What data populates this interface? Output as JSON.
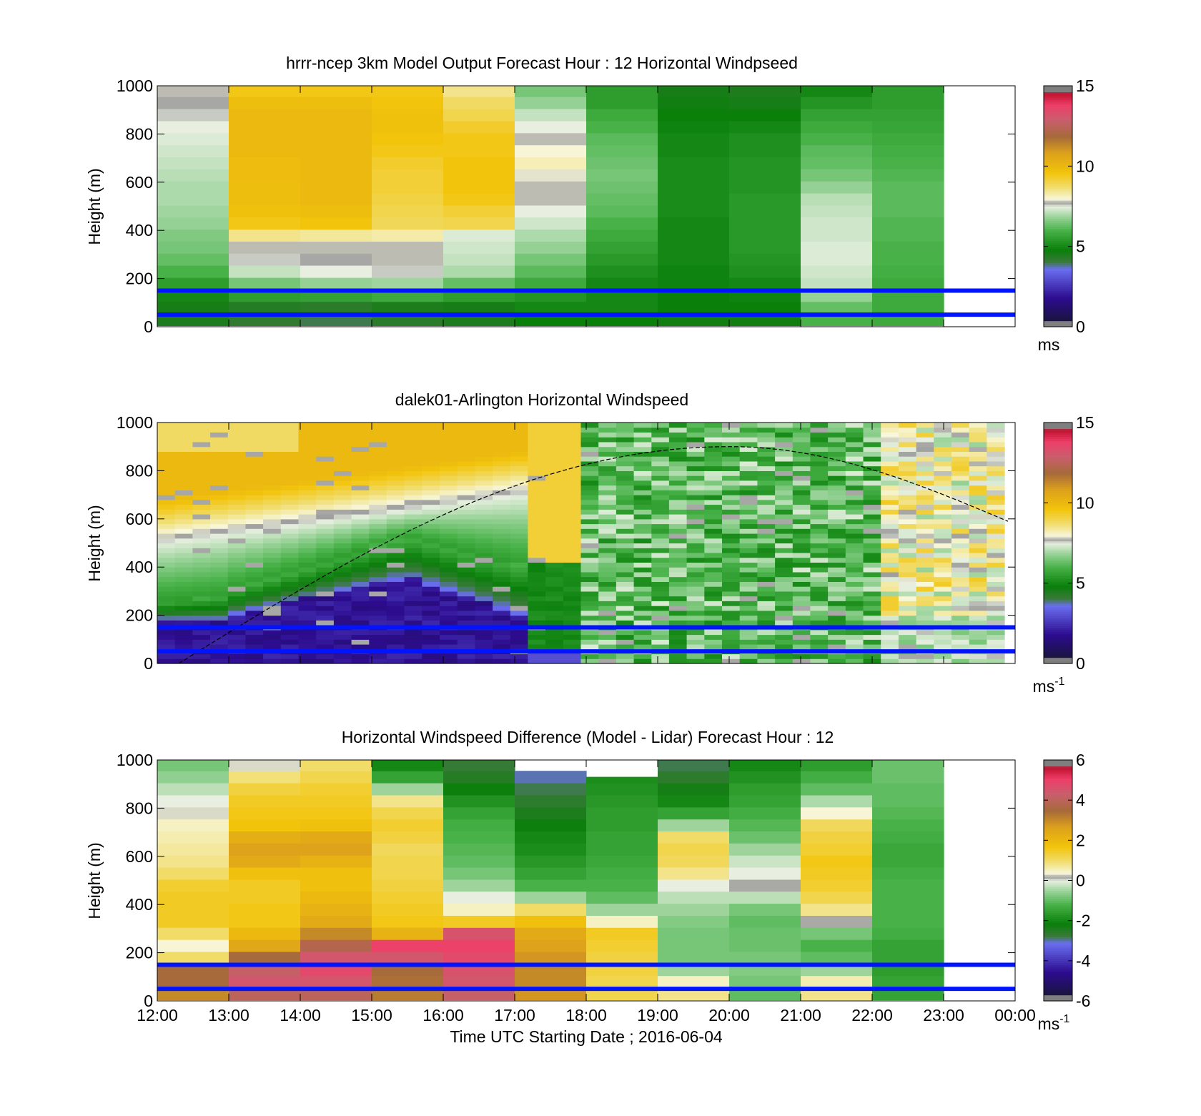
{
  "figure": {
    "xlabel": "Time UTC  Starting Date ; 2016-06-04",
    "x_ticks": [
      "12:00",
      "13:00",
      "14:00",
      "15:00",
      "16:00",
      "17:00",
      "18:00",
      "19:00",
      "20:00",
      "21:00",
      "22:00",
      "23:00",
      "00:00"
    ]
  },
  "chart_data": [
    {
      "type": "heatmap",
      "title": "hrrr-ncep 3km Model Output   Forecast Hour : 12 Horizontal Windpseed",
      "ylabel": "Height (m)",
      "y_ticks": [
        0,
        200,
        400,
        600,
        800,
        1000
      ],
      "ylim": [
        0,
        1000
      ],
      "xlim_hours": [
        12,
        24
      ],
      "colorbar": {
        "min": 0,
        "max": 15,
        "ticks": [
          0,
          5,
          10,
          15
        ],
        "unit": "ms",
        "unit_sup": ""
      },
      "x": [
        12,
        13,
        14,
        15,
        16,
        17,
        18,
        19,
        20,
        21,
        22
      ],
      "heights": [
        30,
        80,
        130,
        180,
        230,
        280,
        330,
        380,
        430,
        480,
        530,
        580,
        630,
        680,
        730,
        780,
        830,
        880,
        930,
        980
      ],
      "z": [
        [
          4.5,
          4.6,
          5.0,
          5.5,
          6.0,
          6.3,
          6.5,
          6.6,
          6.8,
          6.9,
          7.0,
          7.0,
          7.1,
          7.2,
          7.3,
          7.4,
          7.5,
          7.6,
          7.7,
          7.8
        ],
        [
          4.2,
          4.4,
          5.5,
          6.5,
          7.2,
          7.6,
          7.8,
          8.5,
          9.5,
          9.7,
          9.8,
          9.8,
          9.9,
          9.9,
          10.0,
          10.0,
          10.0,
          10.0,
          9.8,
          9.5
        ],
        [
          4.0,
          4.3,
          5.6,
          6.8,
          7.5,
          7.7,
          7.8,
          8.4,
          9.6,
          9.8,
          10.0,
          10.0,
          10.0,
          10.0,
          10.0,
          10.0,
          10.0,
          10.0,
          9.8,
          9.5
        ],
        [
          4.3,
          4.5,
          5.8,
          6.9,
          7.6,
          7.8,
          7.8,
          8.3,
          8.9,
          9.0,
          9.1,
          9.2,
          9.2,
          9.3,
          9.5,
          9.6,
          9.7,
          9.7,
          9.6,
          9.5
        ],
        [
          4.5,
          4.6,
          5.5,
          6.3,
          7.0,
          7.2,
          7.3,
          7.4,
          9.0,
          9.2,
          9.5,
          9.6,
          9.6,
          9.6,
          9.5,
          9.5,
          9.3,
          9.0,
          8.8,
          8.5
        ],
        [
          4.8,
          5.0,
          5.3,
          5.8,
          6.2,
          6.5,
          6.8,
          7.0,
          7.3,
          7.5,
          7.8,
          7.8,
          7.9,
          8.2,
          8.0,
          7.8,
          7.5,
          7.2,
          6.8,
          6.5
        ],
        [
          4.8,
          5.0,
          5.0,
          5.0,
          5.2,
          5.4,
          5.6,
          5.8,
          6.0,
          6.2,
          6.3,
          6.4,
          6.5,
          6.4,
          6.3,
          6.2,
          6.0,
          5.8,
          5.5,
          5.5
        ],
        [
          4.7,
          4.8,
          4.8,
          4.9,
          4.9,
          5.0,
          5.0,
          5.0,
          5.0,
          5.1,
          5.1,
          5.1,
          5.1,
          5.1,
          5.0,
          5.0,
          4.9,
          4.8,
          4.7,
          4.6
        ],
        [
          4.7,
          4.8,
          4.9,
          5.0,
          5.2,
          5.3,
          5.4,
          5.4,
          5.4,
          5.4,
          5.4,
          5.3,
          5.3,
          5.3,
          5.2,
          5.2,
          5.0,
          4.8,
          4.6,
          4.5
        ],
        [
          6.0,
          6.3,
          6.8,
          7.2,
          7.3,
          7.4,
          7.4,
          7.3,
          7.3,
          7.2,
          7.1,
          6.8,
          6.5,
          6.3,
          6.2,
          6.0,
          5.8,
          5.6,
          5.3,
          5.0
        ],
        [
          5.8,
          5.8,
          5.8,
          5.8,
          5.9,
          6.0,
          6.0,
          6.1,
          6.1,
          6.2,
          6.2,
          6.2,
          6.1,
          6.0,
          5.9,
          5.8,
          5.7,
          5.6,
          5.5,
          5.5
        ]
      ],
      "lines_m": [
        150,
        50
      ]
    },
    {
      "type": "heatmap",
      "title": "dalek01-Arlington  Horizontal Windspeed",
      "ylabel": "Height (m)",
      "y_ticks": [
        0,
        200,
        400,
        600,
        800,
        1000
      ],
      "ylim": [
        0,
        1000
      ],
      "xlim_hours": [
        12,
        24
      ],
      "colorbar": {
        "min": 0,
        "max": 15,
        "ticks": [
          0,
          5,
          10,
          15
        ],
        "unit": "ms",
        "unit_sup": "-1"
      },
      "x_start_hours": 12,
      "x_end_hours": 23.85,
      "columns": 48,
      "rows": 50,
      "profile_description": "Low-level jet below ~300 m (1-3 ms-1) until 17:00, 8-10 ms-1 aloft; 5-7 ms-1 mixed layer after 18:00; 7-9 ms-1 after 22:00",
      "boundary_layer_curve": {
        "start_hours": 12.3,
        "start_m": 0,
        "peak_hours": 20.0,
        "peak_m": 900,
        "end_hours": 23.9,
        "end_m": 590
      },
      "lines_m": [
        150,
        50
      ]
    },
    {
      "type": "heatmap",
      "title": "Horizontal Windspeed Difference (Model - Lidar) Forecast Hour : 12",
      "ylabel": "Height (m)",
      "y_ticks": [
        0,
        200,
        400,
        600,
        800,
        1000
      ],
      "ylim": [
        0,
        1000
      ],
      "xlim_hours": [
        12,
        24
      ],
      "colorbar": {
        "min": -6,
        "max": 6,
        "ticks": [
          -6,
          -4,
          -2,
          0,
          2,
          4,
          6
        ],
        "unit": "ms",
        "unit_sup": "-1"
      },
      "x": [
        12,
        13,
        14,
        15,
        16,
        17,
        18,
        19,
        20,
        21,
        22
      ],
      "heights": [
        30,
        80,
        130,
        180,
        230,
        280,
        330,
        380,
        430,
        480,
        530,
        580,
        630,
        680,
        730,
        780,
        830,
        880,
        930,
        980
      ],
      "z": [
        [
          3.0,
          3.5,
          3.5,
          1.0,
          0.4,
          1.0,
          1.5,
          1.5,
          1.5,
          1.4,
          1.0,
          0.8,
          0.7,
          0.6,
          0.5,
          0.3,
          0.0,
          -0.3,
          -0.6,
          -0.8
        ],
        [
          4.0,
          4.5,
          4.2,
          3.5,
          2.5,
          2.0,
          1.6,
          1.6,
          1.5,
          1.5,
          1.8,
          2.4,
          2.6,
          2.3,
          1.7,
          1.6,
          1.5,
          1.3,
          0.9,
          0.3
        ],
        [
          4.0,
          4.5,
          4.8,
          4.5,
          3.8,
          3.0,
          2.4,
          2.2,
          2.0,
          1.8,
          1.8,
          2.2,
          2.6,
          2.4,
          1.8,
          1.6,
          1.5,
          1.4,
          1.2,
          1.0
        ],
        [
          3.2,
          3.4,
          3.5,
          4.5,
          5.0,
          2.2,
          1.6,
          1.5,
          1.4,
          1.3,
          1.2,
          1.2,
          1.1,
          1.3,
          1.4,
          1.2,
          0.8,
          -0.5,
          -1.5,
          -2.0
        ],
        [
          4.2,
          4.5,
          4.6,
          4.8,
          5.0,
          4.6,
          1.5,
          0.5,
          0.0,
          -0.5,
          -0.8,
          -1.0,
          -1.1,
          -1.2,
          -1.3,
          -1.5,
          -1.8,
          -2.2,
          -2.5,
          -2.7
        ],
        [
          2.8,
          3.0,
          3.0,
          2.8,
          2.6,
          2.4,
          1.8,
          1.0,
          -0.5,
          -1.2,
          -1.5,
          -1.7,
          -1.9,
          -2.0,
          -2.2,
          -2.4,
          -2.6,
          -2.8,
          -3.0,
          -3.0
        ],
        [
          1.2,
          1.2,
          1.3,
          1.3,
          1.4,
          1.5,
          0.5,
          -0.5,
          -1.0,
          -1.2,
          -1.3,
          -1.4,
          -1.5,
          -1.5,
          -1.6,
          -1.6,
          -1.7,
          -1.8,
          -1.9,
          -2.0
        ],
        [
          0.8,
          0.5,
          -0.5,
          -0.8,
          -0.8,
          -0.8,
          -0.7,
          -0.5,
          -0.3,
          0.0,
          0.8,
          1.1,
          1.2,
          1.0,
          -0.5,
          -1.5,
          -2.0,
          -2.3,
          -2.6,
          -2.8
        ],
        [
          -1.0,
          -0.8,
          -0.7,
          -0.8,
          -0.9,
          -0.9,
          -1.0,
          -0.8,
          -0.3,
          0.2,
          0.0,
          -0.2,
          -0.5,
          -0.9,
          -1.1,
          -1.3,
          -1.5,
          -1.6,
          -1.8,
          -2.0
        ],
        [
          0.8,
          0.6,
          -0.5,
          -1.0,
          -1.2,
          -0.8,
          0.2,
          0.8,
          1.2,
          1.4,
          1.5,
          1.6,
          1.4,
          1.3,
          1.1,
          0.4,
          -0.4,
          -1.0,
          -1.3,
          -1.6
        ],
        [
          -1.5,
          -1.5,
          -1.6,
          -1.5,
          -1.5,
          -1.3,
          -1.2,
          -1.2,
          -1.2,
          -1.2,
          -1.3,
          -1.4,
          -1.4,
          -1.3,
          -1.2,
          -1.1,
          -1.0,
          -1.0,
          -0.9,
          -0.9
        ]
      ],
      "top_m": [
        1000,
        1000,
        1000,
        1000,
        1000,
        955,
        930,
        1000,
        1000,
        1000,
        1000
      ],
      "lines_m": [
        150,
        50
      ]
    }
  ]
}
